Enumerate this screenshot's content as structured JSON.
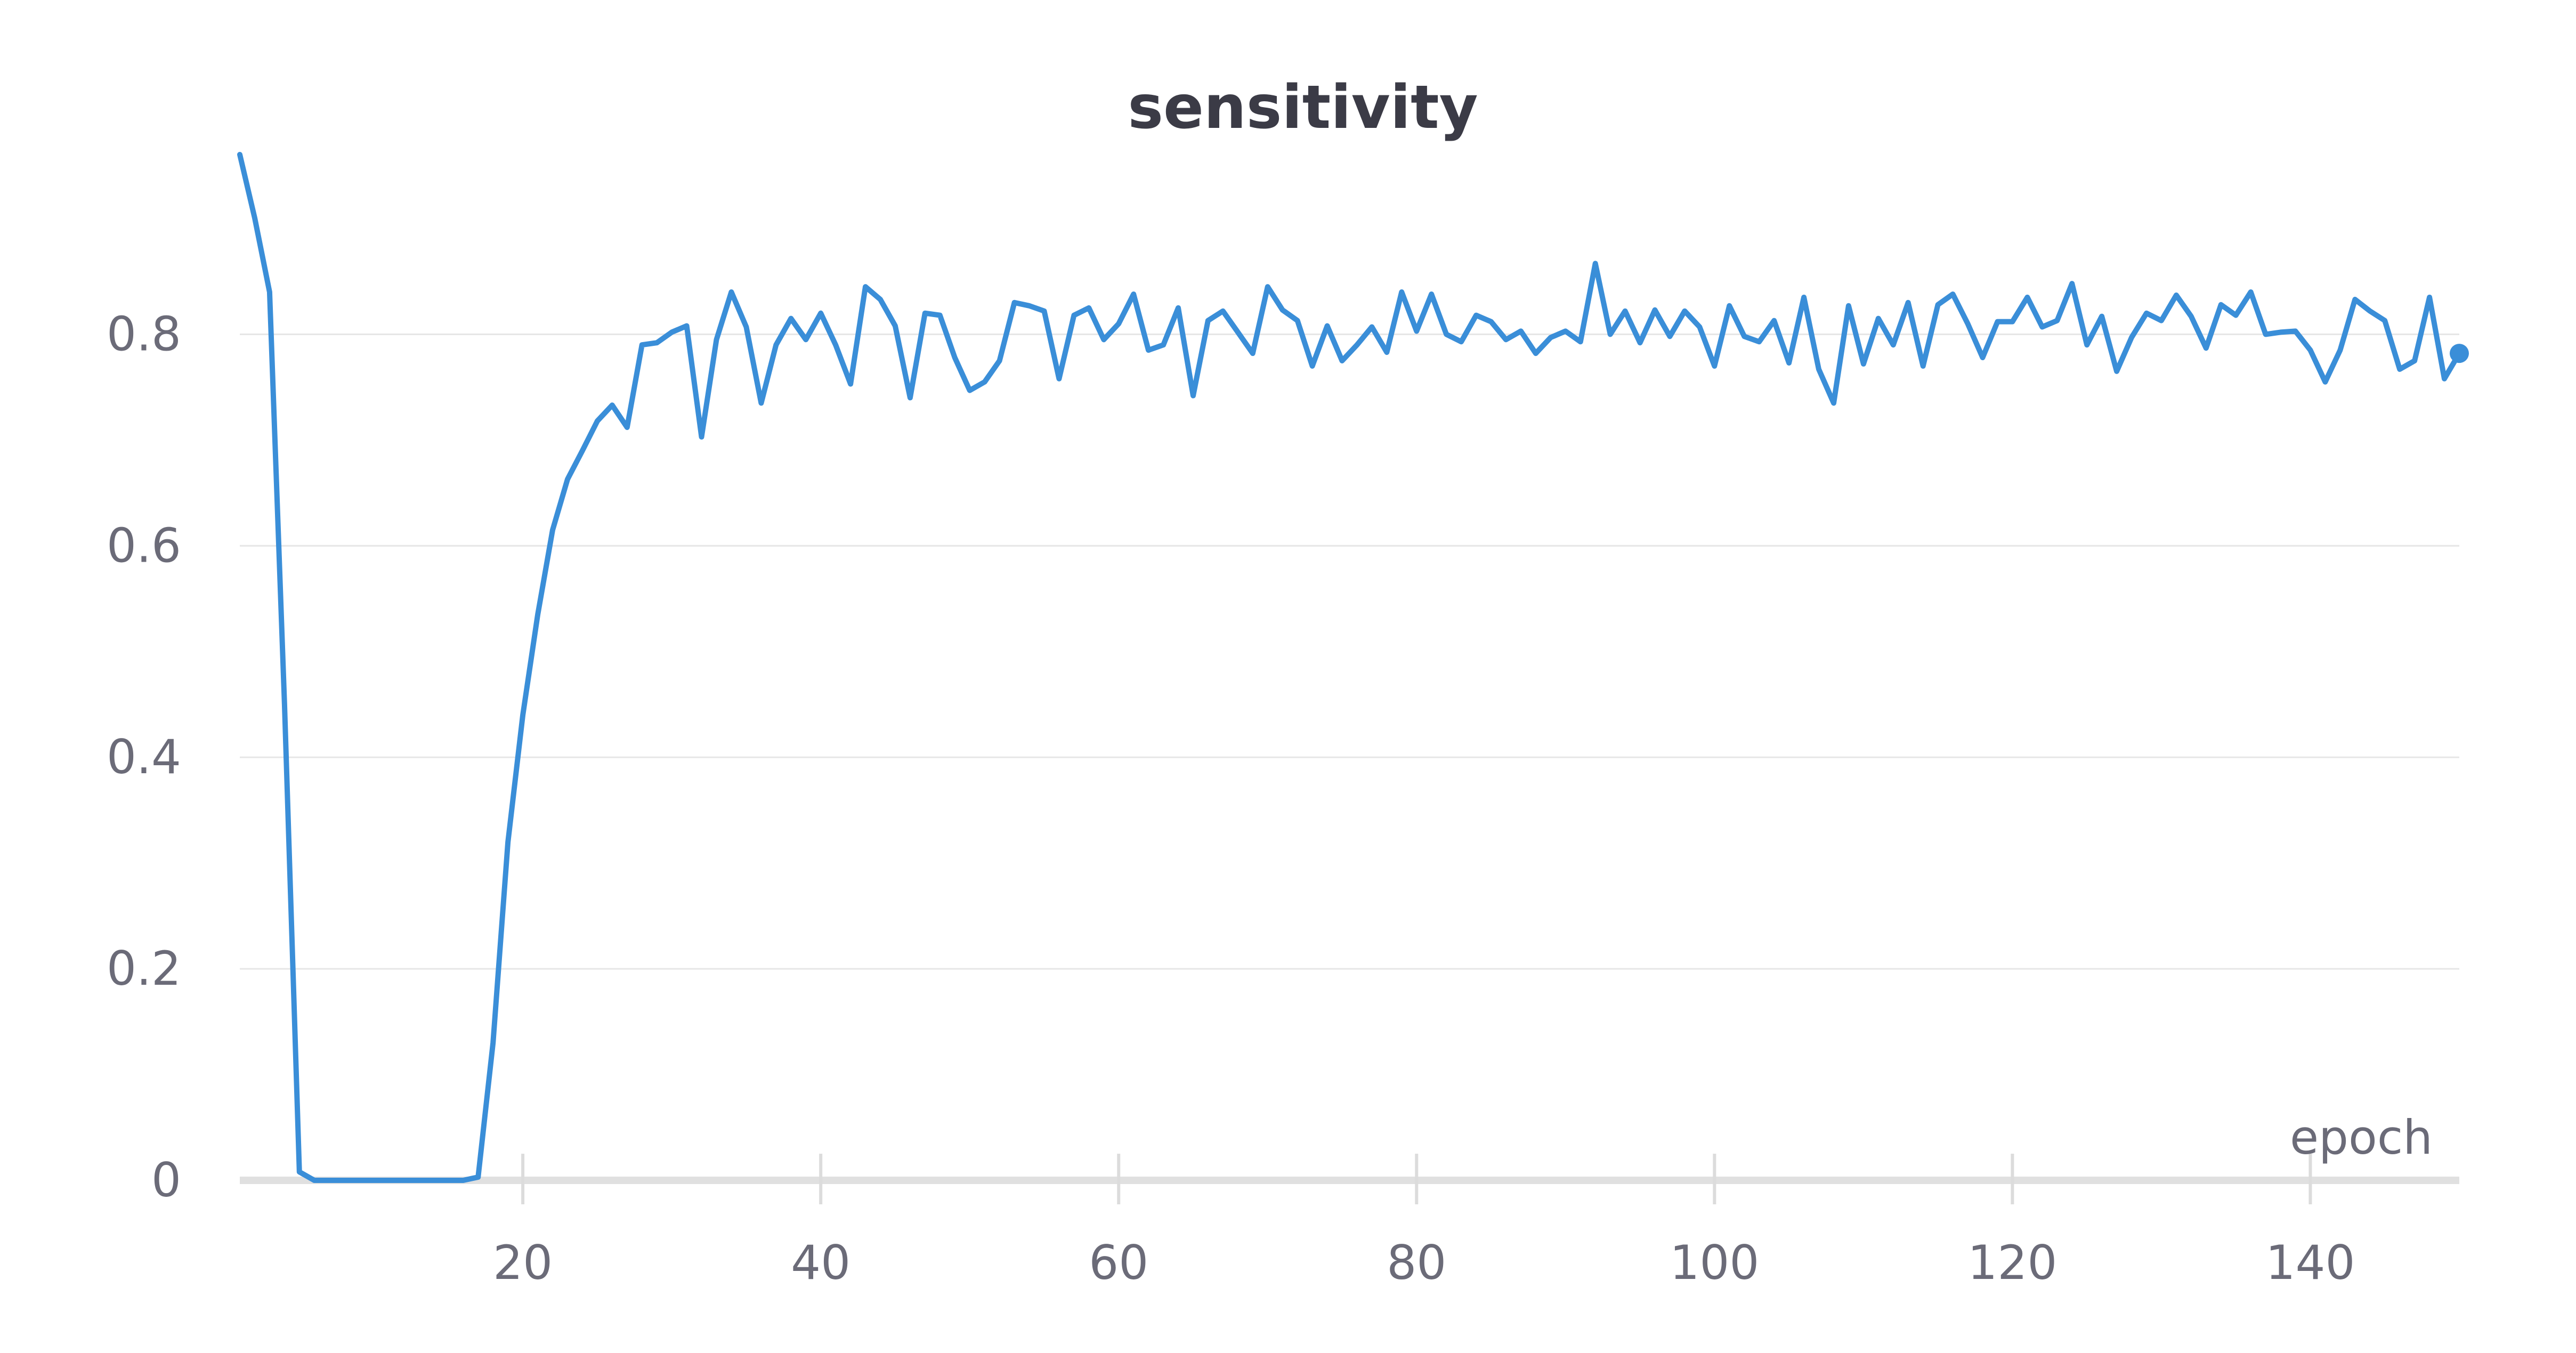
{
  "chart_data": {
    "type": "line",
    "title": "sensitivity",
    "xlabel": "epoch",
    "ylabel": "",
    "xlim": [
      1,
      150
    ],
    "ylim": [
      0,
      0.97
    ],
    "xticks": [
      20,
      40,
      60,
      80,
      100,
      120,
      140
    ],
    "yticks": [
      0,
      0.2,
      0.4,
      0.6,
      0.8
    ],
    "grid": "horizontal",
    "legend": "none",
    "colors": {
      "series": "#3a8ed8",
      "grid": "#e6e6e6",
      "text": "#6b6b78",
      "title": "#3b3b46"
    },
    "series": [
      {
        "x": [
          1,
          2,
          3,
          4,
          5,
          6,
          7,
          8,
          9,
          10,
          11,
          12,
          13,
          14,
          15,
          16,
          17,
          18,
          19,
          20,
          21,
          22,
          23,
          24,
          25,
          26,
          27,
          28,
          29,
          30,
          31,
          32,
          33,
          34,
          35,
          36,
          37,
          38,
          39,
          40,
          41,
          42,
          43,
          44,
          45,
          46,
          47,
          48,
          49,
          50,
          51,
          52,
          53,
          54,
          55,
          56,
          57,
          58,
          59,
          60,
          61,
          62,
          63,
          64,
          65,
          66,
          67,
          68,
          69,
          70,
          71,
          72,
          73,
          74,
          75,
          76,
          77,
          78,
          79,
          80,
          81,
          82,
          83,
          84,
          85,
          86,
          87,
          88,
          89,
          90,
          91,
          92,
          93,
          94,
          95,
          96,
          97,
          98,
          99,
          100,
          101,
          102,
          103,
          104,
          105,
          106,
          107,
          108,
          109,
          110,
          111,
          112,
          113,
          114,
          115,
          116,
          117,
          118,
          119,
          120,
          121,
          122,
          123,
          124,
          125,
          126,
          127,
          128,
          129,
          130,
          131,
          132,
          133,
          134,
          135,
          136,
          137,
          138,
          139,
          140,
          141,
          142,
          143,
          144,
          145,
          146,
          147,
          148,
          149,
          150
        ],
        "values": [
          0.97,
          0.91,
          0.84,
          0.45,
          0.008,
          0.0,
          0.0,
          0.0,
          0.0,
          0.0,
          0.0,
          0.0,
          0.0,
          0.0,
          0.0,
          0.0,
          0.003,
          0.13,
          0.32,
          0.44,
          0.535,
          0.615,
          0.663,
          0.69,
          0.718,
          0.733,
          0.712,
          0.79,
          0.792,
          0.802,
          0.808,
          0.703,
          0.795,
          0.84,
          0.807,
          0.735,
          0.79,
          0.815,
          0.795,
          0.82,
          0.79,
          0.753,
          0.845,
          0.833,
          0.808,
          0.74,
          0.82,
          0.818,
          0.778,
          0.747,
          0.755,
          0.775,
          0.83,
          0.827,
          0.822,
          0.758,
          0.818,
          0.825,
          0.795,
          0.81,
          0.838,
          0.785,
          0.79,
          0.825,
          0.742,
          0.813,
          0.822,
          0.802,
          0.782,
          0.845,
          0.823,
          0.813,
          0.77,
          0.808,
          0.775,
          0.79,
          0.807,
          0.783,
          0.84,
          0.803,
          0.838,
          0.8,
          0.793,
          0.818,
          0.812,
          0.795,
          0.803,
          0.782,
          0.797,
          0.803,
          0.793,
          0.867,
          0.8,
          0.822,
          0.792,
          0.823,
          0.798,
          0.822,
          0.807,
          0.77,
          0.827,
          0.798,
          0.793,
          0.813,
          0.773,
          0.835,
          0.767,
          0.735,
          0.827,
          0.772,
          0.815,
          0.79,
          0.83,
          0.77,
          0.828,
          0.838,
          0.81,
          0.778,
          0.812,
          0.812,
          0.835,
          0.807,
          0.813,
          0.848,
          0.79,
          0.817,
          0.765,
          0.797,
          0.82,
          0.813,
          0.837,
          0.817,
          0.787,
          0.828,
          0.818,
          0.84,
          0.8,
          0.802,
          0.803,
          0.785,
          0.755,
          0.785,
          0.833,
          0.822,
          0.813,
          0.767,
          0.775,
          0.835,
          0.758,
          0.782
        ]
      }
    ]
  }
}
